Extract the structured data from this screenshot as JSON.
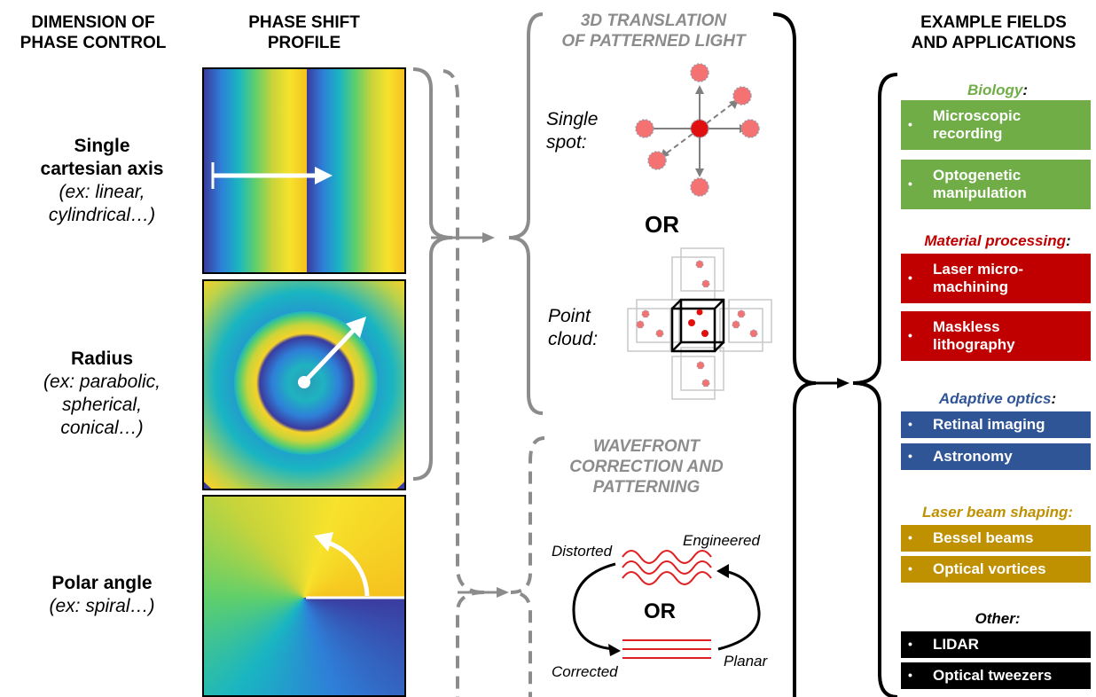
{
  "headers": {
    "dimension_line1": "DIMENSION OF",
    "dimension_line2": "PHASE CONTROL",
    "profile_line1": "PHASE SHIFT",
    "profile_line2": "PROFILE",
    "fields_line1": "EXAMPLE FIELDS",
    "fields_line2": "AND APPLICATIONS"
  },
  "dimensions": [
    {
      "line1": "Single",
      "line2": "cartesian axis",
      "ex1": "(ex: linear,",
      "ex2": "cylindrical…)"
    },
    {
      "line1": "Radius",
      "ex1": "(ex: parabolic,",
      "ex2": "spherical,",
      "ex3": "conical…)"
    },
    {
      "line1": "Polar angle",
      "ex1": "(ex: spiral…)"
    }
  ],
  "translation": {
    "title1": "3D TRANSLATION",
    "title2": "OF PATTERNED LIGHT",
    "single1": "Single",
    "single2": "spot:",
    "or": "OR",
    "cloud1": "Point",
    "cloud2": "cloud:"
  },
  "wavefront": {
    "title1": "WAVEFRONT",
    "title2": "CORRECTION AND",
    "title3": "PATTERNING",
    "distorted": "Distorted",
    "engineered": "Engineered",
    "or": "OR",
    "corrected": "Corrected",
    "planar": "Planar"
  },
  "fields": [
    {
      "category": "Biology",
      "suffix": ":",
      "color": "#70ad47",
      "items": [
        [
          "Microscopic",
          "recording"
        ],
        [
          "Optogenetic",
          "manipulation"
        ]
      ]
    },
    {
      "category": "Material processing",
      "suffix": ":",
      "color": "#c00000",
      "items": [
        [
          "Laser micro-",
          "machining"
        ],
        [
          "Maskless",
          "lithography"
        ]
      ]
    },
    {
      "category": "Adaptive optics",
      "suffix": ":",
      "color": "#2f5597",
      "items": [
        [
          "Retinal imaging"
        ],
        [
          "Astronomy"
        ]
      ]
    },
    {
      "category": "Laser beam shaping:",
      "suffix": "",
      "color": "#bf9000",
      "items": [
        [
          "Bessel beams"
        ],
        [
          "Optical vortices"
        ]
      ]
    },
    {
      "category": "Other:",
      "suffix": "",
      "color": "#000000",
      "items": [
        [
          "LIDAR"
        ],
        [
          "Optical tweezers"
        ]
      ]
    }
  ]
}
